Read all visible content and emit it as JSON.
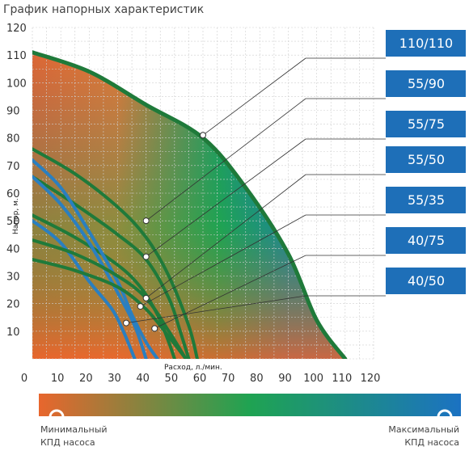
{
  "chart_data": {
    "type": "line",
    "title": "График напорных характеристик",
    "xlabel": "Расход, л./мин.",
    "ylabel": "Напор, м.",
    "xlim": [
      0,
      120
    ],
    "ylim": [
      0,
      120
    ],
    "x_ticks": [
      "0",
      "10",
      "20",
      "30",
      "40",
      "50",
      "60",
      "70",
      "80",
      "90",
      "100",
      "110",
      "120"
    ],
    "y_ticks": [
      "120",
      "110",
      "100",
      "90",
      "80",
      "70",
      "60",
      "50",
      "40",
      "30",
      "20",
      "10"
    ],
    "grid": true,
    "background": "efficiency heat map (orange → green → blue)",
    "series": [
      {
        "name": "110/110",
        "color": "#1f7a3a",
        "x": [
          0,
          20,
          40,
          60,
          75,
          90,
          100,
          110
        ],
        "y": [
          111,
          104,
          92,
          80,
          62,
          38,
          14,
          0
        ]
      },
      {
        "name": "55/90",
        "color": "#1f7a3a",
        "x": [
          0,
          15,
          30,
          40,
          48,
          55,
          58
        ],
        "y": [
          76,
          67,
          55,
          44,
          30,
          12,
          0
        ]
      },
      {
        "name": "55/75",
        "color": "#1f7a3a",
        "x": [
          0,
          15,
          30,
          40,
          48,
          52,
          55
        ],
        "y": [
          66,
          56,
          45,
          36,
          22,
          10,
          0
        ]
      },
      {
        "name": "55/50",
        "color": "#1f7a3a",
        "x": [
          0,
          15,
          30,
          38,
          44,
          48,
          50
        ],
        "y": [
          52,
          44,
          34,
          26,
          16,
          6,
          0
        ]
      },
      {
        "name": "55/35",
        "color": "#2a7fc0",
        "x": [
          0,
          10,
          20,
          30,
          35,
          40,
          44
        ],
        "y": [
          72,
          62,
          46,
          28,
          16,
          6,
          0
        ]
      },
      {
        "name": "40/75",
        "color": "#2a7fc0",
        "x": [
          0,
          10,
          20,
          30,
          36,
          40
        ],
        "y": [
          66,
          56,
          42,
          24,
          12,
          0
        ]
      },
      {
        "name": "40/50",
        "color": "#2a7fc0",
        "x": [
          0,
          10,
          20,
          28,
          32,
          36
        ],
        "y": [
          50,
          42,
          28,
          18,
          10,
          0
        ]
      },
      {
        "name": "",
        "color": "#1f7a3a",
        "x": [
          0,
          15,
          30,
          40,
          48,
          54
        ],
        "y": [
          43,
          38,
          30,
          22,
          10,
          0
        ]
      },
      {
        "name": "",
        "color": "#1f7a3a",
        "x": [
          0,
          15,
          30,
          40,
          48,
          54
        ],
        "y": [
          36,
          32,
          26,
          18,
          8,
          0
        ]
      }
    ],
    "markers": [
      {
        "label": "110/110",
        "x": 60,
        "y": 81
      },
      {
        "label": "55/90",
        "x": 40,
        "y": 50
      },
      {
        "label": "55/75",
        "x": 40,
        "y": 37
      },
      {
        "label": "55/50",
        "x": 40,
        "y": 22
      },
      {
        "label": "55/35",
        "x": 38,
        "y": 19
      },
      {
        "label": "40/75",
        "x": 43,
        "y": 11
      },
      {
        "label": "40/50",
        "x": 33,
        "y": 13
      }
    ],
    "legend": [
      "110/110",
      "55/90",
      "55/75",
      "55/50",
      "55/35",
      "40/75",
      "40/50"
    ],
    "legend_position": "right",
    "legend_color": "#1e6fb8"
  },
  "colorbar": {
    "min_label_line1": "Минимальный",
    "min_label_line2": "КПД насоса",
    "max_label_line1": "Максимальный",
    "max_label_line2": "КПД насоса",
    "colors": [
      "#e8662d",
      "#1fa352",
      "#1b72c2"
    ]
  }
}
